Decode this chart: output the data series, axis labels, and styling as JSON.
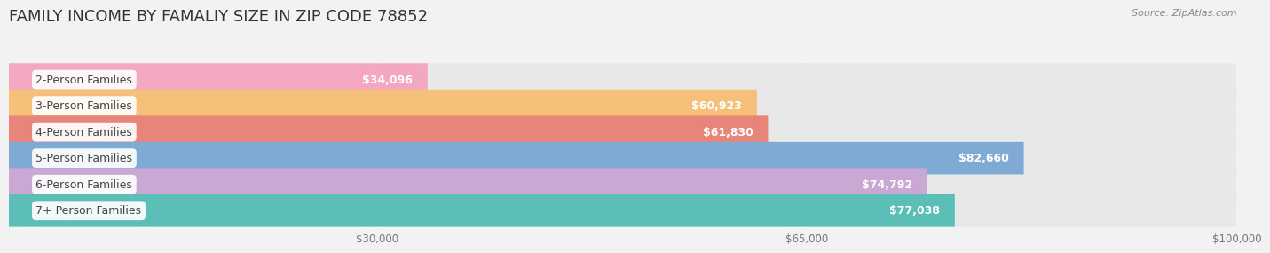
{
  "title": "FAMILY INCOME BY FAMALIY SIZE IN ZIP CODE 78852",
  "source": "Source: ZipAtlas.com",
  "categories": [
    "2-Person Families",
    "3-Person Families",
    "4-Person Families",
    "5-Person Families",
    "6-Person Families",
    "7+ Person Families"
  ],
  "values": [
    34096,
    60923,
    61830,
    82660,
    74792,
    77038
  ],
  "bar_colors": [
    "#f4a7c0",
    "#f5c07a",
    "#e8857a",
    "#7eaad4",
    "#c9a8d4",
    "#5bbfb8"
  ],
  "value_labels": [
    "$34,096",
    "$60,923",
    "$61,830",
    "$82,660",
    "$74,792",
    "$77,038"
  ],
  "xlim": [
    0,
    100000
  ],
  "xticks": [
    0,
    30000,
    65000,
    100000
  ],
  "xtick_labels": [
    "",
    "$30,000",
    "$65,000",
    "$100,000"
  ],
  "background_color": "#f2f2f2",
  "bar_bg_color": "#e8e8e8",
  "title_fontsize": 13,
  "label_fontsize": 9,
  "value_fontsize": 9,
  "bar_height": 0.62,
  "fig_width": 14.06,
  "fig_height": 3.05
}
